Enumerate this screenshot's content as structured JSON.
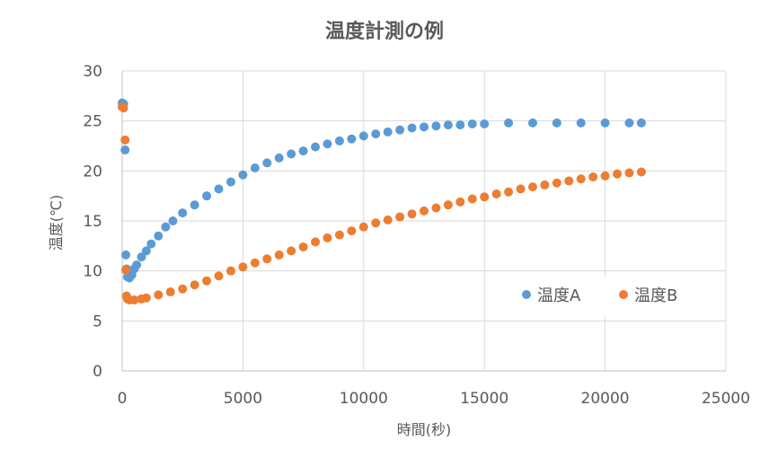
{
  "chart_data": {
    "type": "scatter",
    "title": "温度計測の例",
    "xlabel": "時間(秒)",
    "ylabel": "温度(℃)",
    "xlim": [
      0,
      25000
    ],
    "ylim": [
      0,
      30
    ],
    "x_ticks": [
      "0",
      "5000",
      "10000",
      "15000",
      "20000",
      "25000"
    ],
    "y_ticks": [
      "0",
      "5",
      "10",
      "15",
      "20",
      "25",
      "30"
    ],
    "grid": true,
    "legend_position": "right",
    "series": [
      {
        "name": "温度A",
        "color": "#5B9BD5",
        "points": [
          [
            0,
            26.8
          ],
          [
            60,
            26.7
          ],
          [
            120,
            22.1
          ],
          [
            150,
            11.6
          ],
          [
            180,
            10.2
          ],
          [
            220,
            9.4
          ],
          [
            300,
            9.3
          ],
          [
            400,
            9.6
          ],
          [
            500,
            10.2
          ],
          [
            600,
            10.6
          ],
          [
            800,
            11.4
          ],
          [
            1000,
            12.0
          ],
          [
            1200,
            12.7
          ],
          [
            1500,
            13.5
          ],
          [
            1800,
            14.4
          ],
          [
            2100,
            15.0
          ],
          [
            2500,
            15.8
          ],
          [
            3000,
            16.6
          ],
          [
            3500,
            17.5
          ],
          [
            4000,
            18.2
          ],
          [
            4500,
            18.9
          ],
          [
            5000,
            19.6
          ],
          [
            5500,
            20.3
          ],
          [
            6000,
            20.8
          ],
          [
            6500,
            21.3
          ],
          [
            7000,
            21.7
          ],
          [
            7500,
            22.0
          ],
          [
            8000,
            22.4
          ],
          [
            8500,
            22.7
          ],
          [
            9000,
            23.0
          ],
          [
            9500,
            23.2
          ],
          [
            10000,
            23.5
          ],
          [
            10500,
            23.7
          ],
          [
            11000,
            23.9
          ],
          [
            11500,
            24.1
          ],
          [
            12000,
            24.3
          ],
          [
            12500,
            24.4
          ],
          [
            13000,
            24.5
          ],
          [
            13500,
            24.6
          ],
          [
            14000,
            24.6
          ],
          [
            14500,
            24.7
          ],
          [
            15000,
            24.7
          ],
          [
            16000,
            24.8
          ],
          [
            17000,
            24.8
          ],
          [
            18000,
            24.8
          ],
          [
            19000,
            24.8
          ],
          [
            20000,
            24.8
          ],
          [
            21000,
            24.8
          ],
          [
            21500,
            24.8
          ]
        ]
      },
      {
        "name": "温度B",
        "color": "#ED7D31",
        "points": [
          [
            0,
            26.4
          ],
          [
            60,
            26.3
          ],
          [
            120,
            23.1
          ],
          [
            150,
            10.1
          ],
          [
            180,
            7.5
          ],
          [
            220,
            7.2
          ],
          [
            300,
            7.1
          ],
          [
            500,
            7.1
          ],
          [
            800,
            7.2
          ],
          [
            1000,
            7.3
          ],
          [
            1500,
            7.6
          ],
          [
            2000,
            7.9
          ],
          [
            2500,
            8.2
          ],
          [
            3000,
            8.6
          ],
          [
            3500,
            9.0
          ],
          [
            4000,
            9.5
          ],
          [
            4500,
            10.0
          ],
          [
            5000,
            10.4
          ],
          [
            5500,
            10.8
          ],
          [
            6000,
            11.2
          ],
          [
            6500,
            11.6
          ],
          [
            7000,
            12.0
          ],
          [
            7500,
            12.4
          ],
          [
            8000,
            12.9
          ],
          [
            8500,
            13.3
          ],
          [
            9000,
            13.6
          ],
          [
            9500,
            14.0
          ],
          [
            10000,
            14.4
          ],
          [
            10500,
            14.8
          ],
          [
            11000,
            15.1
          ],
          [
            11500,
            15.4
          ],
          [
            12000,
            15.7
          ],
          [
            12500,
            16.0
          ],
          [
            13000,
            16.3
          ],
          [
            13500,
            16.6
          ],
          [
            14000,
            16.9
          ],
          [
            14500,
            17.2
          ],
          [
            15000,
            17.4
          ],
          [
            15500,
            17.7
          ],
          [
            16000,
            17.9
          ],
          [
            16500,
            18.2
          ],
          [
            17000,
            18.4
          ],
          [
            17500,
            18.6
          ],
          [
            18000,
            18.8
          ],
          [
            18500,
            19.0
          ],
          [
            19000,
            19.2
          ],
          [
            19500,
            19.4
          ],
          [
            20000,
            19.5
          ],
          [
            20500,
            19.7
          ],
          [
            21000,
            19.8
          ],
          [
            21500,
            19.9
          ]
        ]
      }
    ]
  }
}
